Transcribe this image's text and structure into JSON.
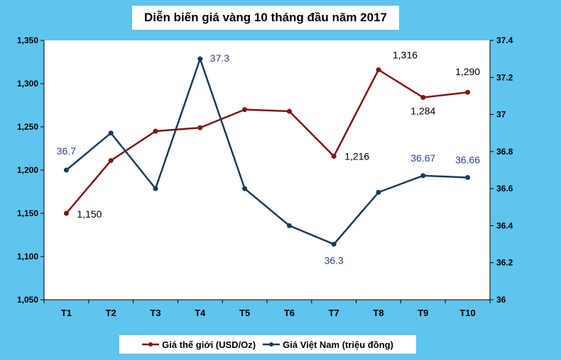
{
  "chart_data": {
    "type": "line",
    "title": "Diễn biến giá vàng 10 tháng đầu năm 2017",
    "categories": [
      "T1",
      "T2",
      "T3",
      "T4",
      "T5",
      "T6",
      "T7",
      "T8",
      "T9",
      "T10"
    ],
    "y_left": {
      "ylim": [
        1050,
        1350
      ],
      "ticks": [
        "1,050",
        "1,100",
        "1,150",
        "1,200",
        "1,250",
        "1,300",
        "1,350"
      ]
    },
    "y_right": {
      "ylim": [
        36,
        37.4
      ],
      "ticks": [
        "36",
        "36.2",
        "36.4",
        "36.6",
        "36.8",
        "37",
        "37.2",
        "37.4"
      ]
    },
    "series": [
      {
        "name": "Giá thế giới (USD/Oz)",
        "axis": "left",
        "color": "#7f1416",
        "values": [
          1150,
          1211,
          1245,
          1249,
          1270,
          1268,
          1216,
          1316,
          1284,
          1290
        ],
        "labels": [
          "1,150",
          "",
          "",
          "",
          "",
          "",
          "1,216",
          "1,316",
          "1,284",
          "1,290"
        ]
      },
      {
        "name": "Giá Việt Nam (triệu đồng)",
        "axis": "right",
        "color": "#1b3a5e",
        "values": [
          36.7,
          36.9,
          36.6,
          37.3,
          36.6,
          36.4,
          36.3,
          36.58,
          36.67,
          36.66
        ],
        "labels": [
          "36.7",
          "",
          "",
          "37.3",
          "",
          "",
          "36.3",
          "",
          "36.67",
          "36.66"
        ]
      }
    ],
    "legend_position": "bottom",
    "grid": false,
    "label_color_right": "#2c3f91"
  }
}
